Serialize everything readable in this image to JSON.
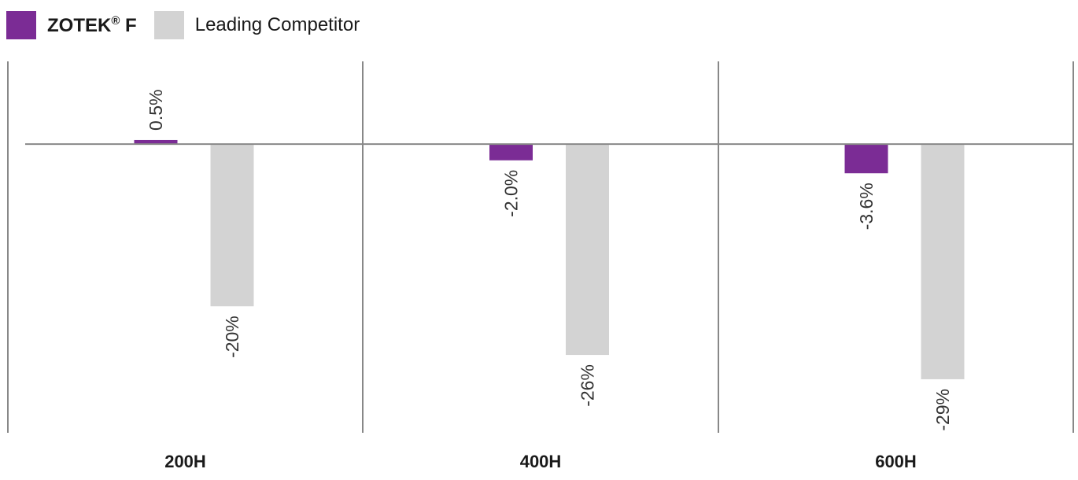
{
  "chart_data": {
    "type": "bar",
    "categories": [
      "200H",
      "400H",
      "600H"
    ],
    "series": [
      {
        "name": "ZOTEK® F",
        "values": [
          0.5,
          -2.0,
          -3.6
        ],
        "labels": [
          "0.5%",
          "-2.0%",
          "-3.6%"
        ],
        "color": "#7b2c95"
      },
      {
        "name": "Leading Competitor",
        "values": [
          -20,
          -26,
          -29
        ],
        "labels": [
          "-20%",
          "-26%",
          "-29%"
        ],
        "color": "#d3d3d3"
      }
    ],
    "legend": {
      "position": "top-left",
      "entries": [
        {
          "name": "ZOTEK",
          "superscript": "®",
          "suffix": " F",
          "bold": true
        },
        {
          "name": "Leading Competitor",
          "bold": false
        }
      ]
    },
    "ylim": [
      -35.6,
      10.2
    ],
    "axis_color": "#888888",
    "grid": false,
    "title": "",
    "xlabel": "",
    "ylabel": ""
  }
}
